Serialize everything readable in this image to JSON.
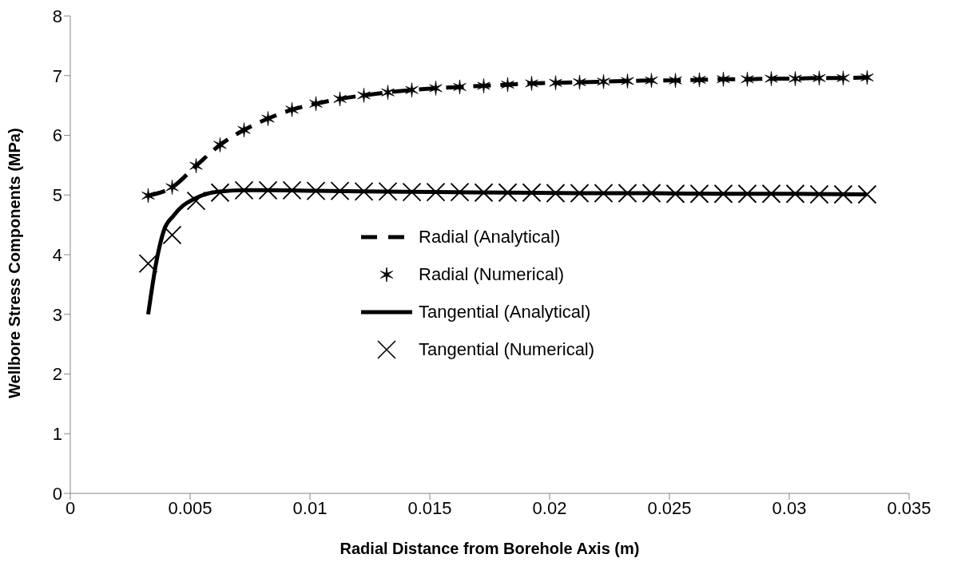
{
  "chart_data": {
    "type": "line",
    "xlabel": "Radial Distance from Borehole Axis (m)",
    "ylabel": "Wellbore Stress Components (MPa)",
    "xlim": [
      0,
      0.035
    ],
    "xticks": [
      0,
      0.005,
      0.01,
      0.015,
      0.02,
      0.025,
      0.03,
      0.035
    ],
    "ylim": [
      0,
      8
    ],
    "yticks": [
      0,
      1,
      2,
      3,
      4,
      5,
      6,
      7,
      8
    ],
    "grid": false,
    "legend": "center",
    "series": [
      {
        "name": "Radial (Analytical)",
        "color": "#000000",
        "line_style": "dashed",
        "x": [
          0.00325,
          0.00425,
          0.00525,
          0.00625,
          0.00725,
          0.00825,
          0.00925,
          0.01025,
          0.01125,
          0.01225,
          0.01325,
          0.01425,
          0.01525,
          0.01625,
          0.01725,
          0.01825,
          0.01925,
          0.02025,
          0.02125,
          0.02225,
          0.02325,
          0.02425,
          0.02525,
          0.02625,
          0.02725,
          0.02825,
          0.02925,
          0.03025,
          0.03125,
          0.03225,
          0.03325
        ],
        "values": [
          4.99,
          5.13,
          5.49,
          5.84,
          6.09,
          6.28,
          6.43,
          6.53,
          6.61,
          6.67,
          6.72,
          6.76,
          6.79,
          6.81,
          6.83,
          6.85,
          6.87,
          6.88,
          6.89,
          6.9,
          6.91,
          6.92,
          6.92,
          6.93,
          6.94,
          6.94,
          6.95,
          6.95,
          6.96,
          6.96,
          6.97
        ]
      },
      {
        "name": "Radial (Numerical)",
        "type": "scatter",
        "color": "#000000",
        "x": [
          0.00325,
          0.00425,
          0.00525,
          0.00625,
          0.00725,
          0.00825,
          0.00925,
          0.01025,
          0.01125,
          0.01225,
          0.01325,
          0.01425,
          0.01525,
          0.01625,
          0.01725,
          0.01825,
          0.01925,
          0.02025,
          0.02125,
          0.02225,
          0.02325,
          0.02425,
          0.02525,
          0.02625,
          0.02725,
          0.02825,
          0.02925,
          0.03025,
          0.03125,
          0.03225,
          0.03325
        ],
        "values": [
          4.99,
          5.13,
          5.49,
          5.84,
          6.09,
          6.28,
          6.43,
          6.53,
          6.61,
          6.67,
          6.72,
          6.76,
          6.79,
          6.81,
          6.83,
          6.85,
          6.87,
          6.88,
          6.89,
          6.9,
          6.91,
          6.92,
          6.92,
          6.93,
          6.94,
          6.94,
          6.95,
          6.95,
          6.96,
          6.96,
          6.97
        ]
      },
      {
        "name": "Tangential (Analytical)",
        "color": "#000000",
        "line_style": "solid",
        "x": [
          0.00325,
          0.0036,
          0.0039,
          0.0043,
          0.0047,
          0.0052,
          0.0057,
          0.0063,
          0.0073,
          0.00825,
          0.01025,
          0.01225,
          0.01525,
          0.01825,
          0.02125,
          0.02425,
          0.02725,
          0.03025,
          0.03325
        ],
        "values": [
          3.0,
          3.9,
          4.4,
          4.65,
          4.82,
          4.94,
          5.02,
          5.06,
          5.08,
          5.08,
          5.07,
          5.06,
          5.05,
          5.04,
          5.03,
          5.03,
          5.02,
          5.02,
          5.01
        ]
      },
      {
        "name": "Tangential (Numerical)",
        "type": "scatter",
        "color": "#000000",
        "marker": "cross",
        "x": [
          0.00325,
          0.00425,
          0.00525,
          0.00625,
          0.00725,
          0.00825,
          0.00925,
          0.01025,
          0.01125,
          0.01225,
          0.01325,
          0.01425,
          0.01525,
          0.01625,
          0.01725,
          0.01825,
          0.01925,
          0.02025,
          0.02125,
          0.02225,
          0.02325,
          0.02425,
          0.02525,
          0.02625,
          0.02725,
          0.02825,
          0.02925,
          0.03025,
          0.03125,
          0.03225,
          0.03325
        ],
        "values": [
          3.85,
          4.33,
          4.9,
          5.04,
          5.08,
          5.08,
          5.08,
          5.07,
          5.07,
          5.06,
          5.06,
          5.05,
          5.05,
          5.05,
          5.04,
          5.04,
          5.04,
          5.03,
          5.03,
          5.03,
          5.03,
          5.03,
          5.02,
          5.02,
          5.02,
          5.02,
          5.02,
          5.02,
          5.01,
          5.01,
          5.01
        ]
      }
    ]
  }
}
